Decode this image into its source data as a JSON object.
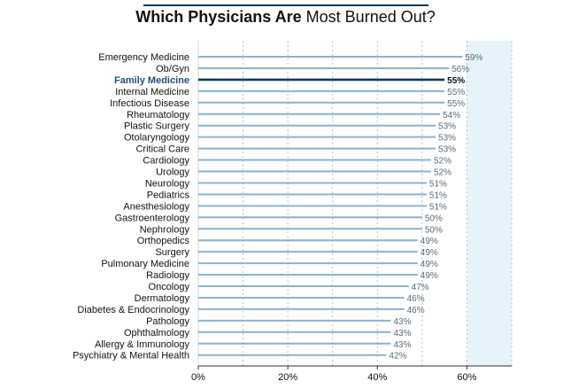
{
  "chart_data": {
    "type": "bar",
    "orientation": "horizontal",
    "title_bold": "Which Physicians Are",
    "title_regular": "Most Burned Out?",
    "categories": [
      "Emergency Medicine",
      "Ob/Gyn",
      "Family Medicine",
      "Internal Medicine",
      "Infectious Disease",
      "Rheumatology",
      "Plastic Surgery",
      "Otolaryngology",
      "Critical Care",
      "Cardiology",
      "Urology",
      "Neurology",
      "Pediatrics",
      "Anesthesiology",
      "Gastroenterology",
      "Nephrology",
      "Orthopedics",
      "Surgery",
      "Pulmonary Medicine",
      "Radiology",
      "Oncology",
      "Dermatology",
      "Diabetes & Endocrinology",
      "Pathology",
      "Ophthalmology",
      "Allergy & Immunology",
      "Psychiatry & Mental Health"
    ],
    "values": [
      59,
      56,
      55,
      55,
      55,
      54,
      53,
      53,
      53,
      52,
      52,
      51,
      51,
      51,
      50,
      50,
      49,
      49,
      49,
      49,
      47,
      46,
      46,
      43,
      43,
      43,
      42
    ],
    "value_labels": [
      "59%",
      "56%",
      "55%",
      "55%",
      "55%",
      "54%",
      "53%",
      "53%",
      "53%",
      "52%",
      "52%",
      "51%",
      "51%",
      "51%",
      "50%",
      "50%",
      "49%",
      "49%",
      "49%",
      "49%",
      "47%",
      "46%",
      "46%",
      "43%",
      "43%",
      "43%",
      "42%"
    ],
    "highlight": "Family Medicine",
    "xlim": [
      0,
      70
    ],
    "xticks": [
      0,
      20,
      40,
      60
    ],
    "xtick_labels": [
      "0%",
      "20%",
      "40%",
      "60%"
    ],
    "grid": "vertical dashed",
    "shaded_region_start": 60,
    "colors": {
      "bar": "#8ab4cc",
      "highlight_bar": "#0e3c5e",
      "shade": "#e6f3fb",
      "grid": "#a9c4d4",
      "title_rule": "#0e3c5e"
    }
  }
}
